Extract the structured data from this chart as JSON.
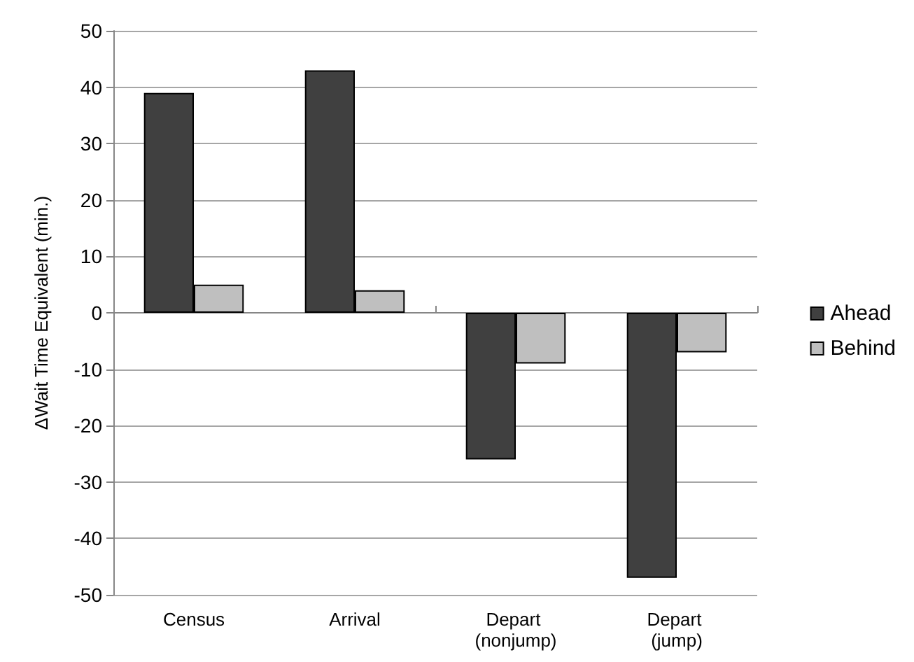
{
  "chart_data": {
    "type": "bar",
    "ylabel": "ΔWait Time Equivalent (min.)",
    "categories": [
      "Census",
      "Arrival",
      "Depart (nonjump)",
      "Depart (jump)"
    ],
    "series": [
      {
        "name": "Ahead",
        "color": "#404040",
        "values": [
          39,
          43,
          -26,
          -47
        ]
      },
      {
        "name": "Behind",
        "color": "#bfbfbf",
        "values": [
          5,
          4,
          -9,
          -7
        ]
      }
    ],
    "ylim": [
      -50,
      50
    ],
    "yticks": [
      -50,
      -40,
      -30,
      -20,
      -10,
      0,
      10,
      20,
      30,
      40,
      50
    ],
    "grid": "y",
    "legend": "right"
  }
}
